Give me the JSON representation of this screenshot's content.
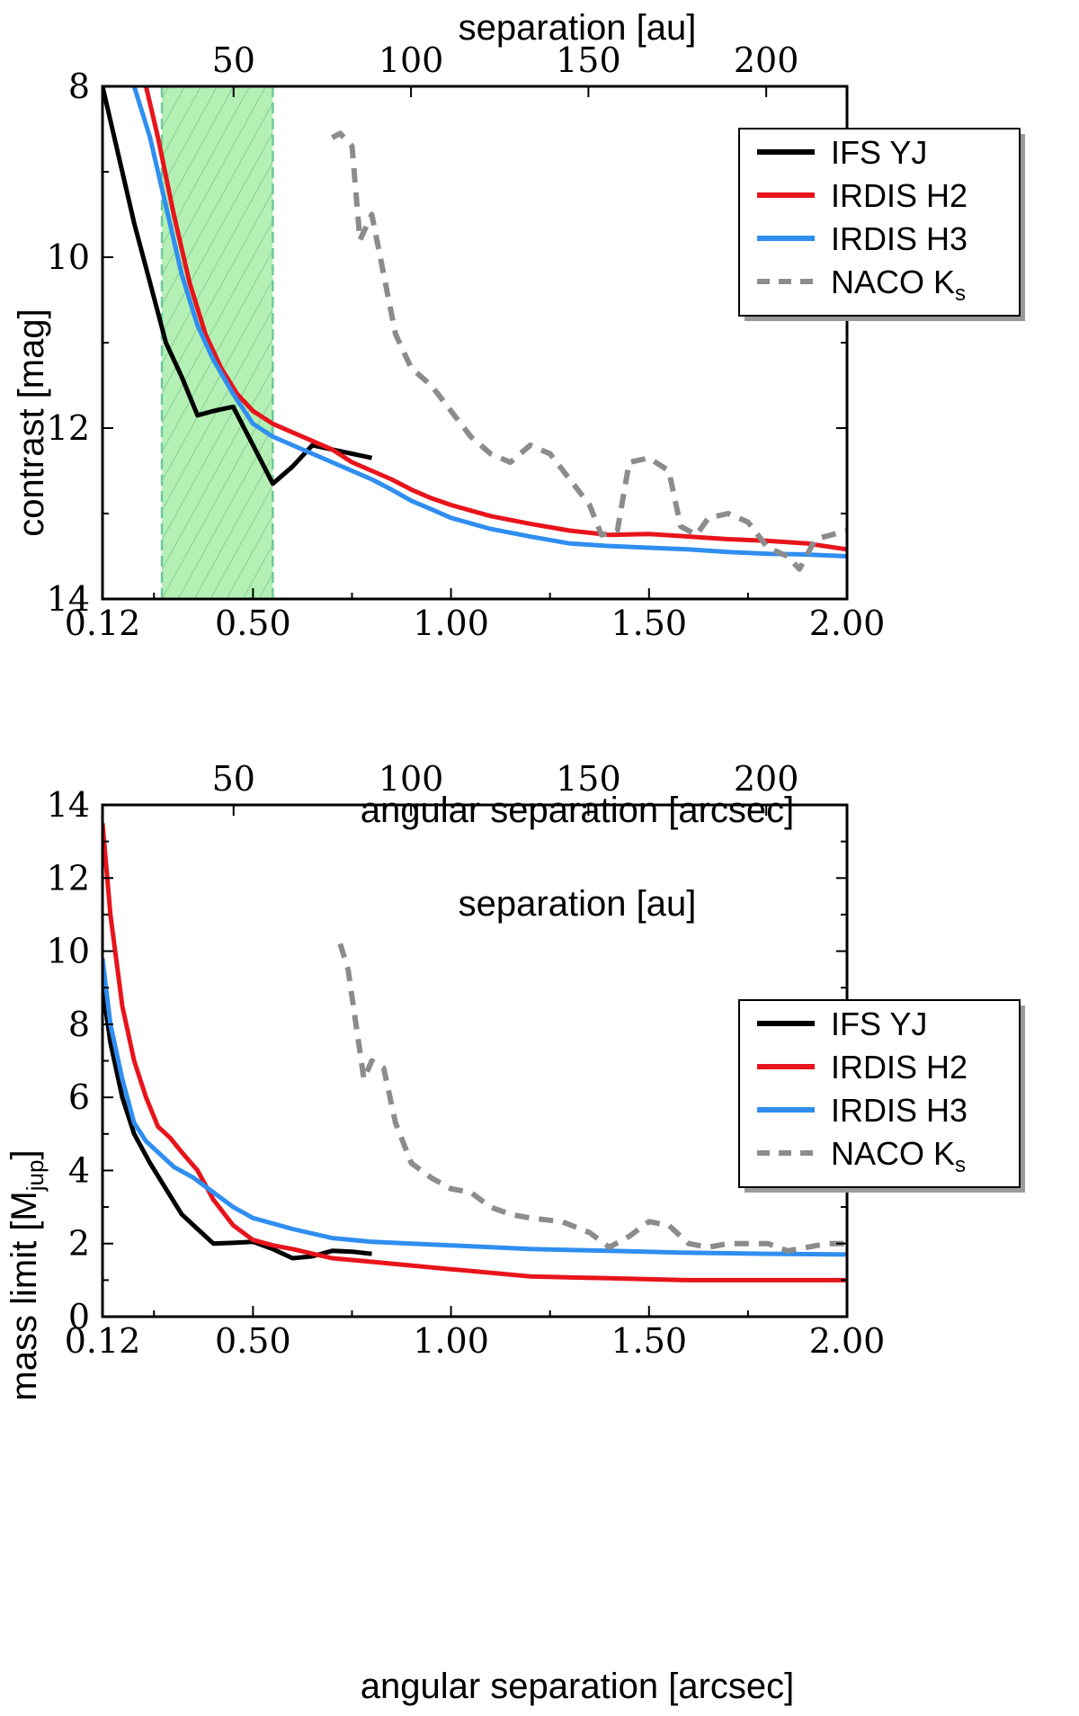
{
  "colors": {
    "IFS": "#000000",
    "H2": "#e8141b",
    "H3": "#2f8ef0",
    "NACO": "#8c8c8c",
    "band_fill": "#b4f0b4",
    "band_edge": "#6cc99a"
  },
  "chart_data": [
    {
      "type": "line",
      "name": "contrast",
      "xlabel": "angular separation [arcsec]",
      "ylabel": "contrast [mag]",
      "top_xlabel": "separation [au]",
      "xlim": [
        0.12,
        2.0
      ],
      "ylim": [
        14,
        8
      ],
      "x_ticks": [
        "0.12",
        "0.50",
        "1.00",
        "1.50",
        "2.00"
      ],
      "x_tick_values": [
        0.12,
        0.5,
        1.0,
        1.5,
        2.0
      ],
      "y_ticks": [
        "8",
        "10",
        "12",
        "14"
      ],
      "y_tick_values": [
        8,
        10,
        12,
        14
      ],
      "top_ticks": [
        "50",
        "100",
        "150",
        "200"
      ],
      "top_tick_values": [
        0.451,
        0.899,
        1.347,
        1.796
      ],
      "shaded_band": [
        0.27,
        0.55
      ],
      "legend": [
        "IFS YJ",
        "IRDIS H2",
        "IRDIS H3",
        "NACO K"
      ],
      "legend_sub": "s",
      "legend_position": "top-right",
      "series": [
        {
          "name": "IFS YJ",
          "style": "solid",
          "x": [
            0.12,
            0.16,
            0.2,
            0.24,
            0.28,
            0.32,
            0.36,
            0.4,
            0.45,
            0.5,
            0.55,
            0.6,
            0.65,
            0.7,
            0.75,
            0.8
          ],
          "y": [
            8.0,
            8.8,
            9.6,
            10.3,
            11.0,
            11.4,
            11.85,
            11.8,
            11.75,
            12.2,
            12.65,
            12.45,
            12.2,
            12.25,
            12.3,
            12.35
          ]
        },
        {
          "name": "IRDIS H2",
          "style": "solid",
          "x": [
            0.23,
            0.26,
            0.3,
            0.34,
            0.38,
            0.42,
            0.46,
            0.5,
            0.55,
            0.6,
            0.65,
            0.7,
            0.75,
            0.8,
            0.85,
            0.9,
            0.95,
            1.0,
            1.1,
            1.2,
            1.3,
            1.4,
            1.5,
            1.6,
            1.7,
            1.8,
            1.9,
            2.0
          ],
          "y": [
            8.0,
            8.6,
            9.5,
            10.3,
            10.9,
            11.3,
            11.6,
            11.8,
            11.95,
            12.05,
            12.15,
            12.25,
            12.4,
            12.5,
            12.6,
            12.72,
            12.82,
            12.9,
            13.03,
            13.12,
            13.2,
            13.25,
            13.24,
            13.27,
            13.3,
            13.32,
            13.35,
            13.42
          ]
        },
        {
          "name": "IRDIS H3",
          "style": "solid",
          "x": [
            0.2,
            0.24,
            0.28,
            0.32,
            0.36,
            0.4,
            0.45,
            0.5,
            0.55,
            0.6,
            0.65,
            0.7,
            0.75,
            0.8,
            0.85,
            0.9,
            0.95,
            1.0,
            1.1,
            1.2,
            1.3,
            1.4,
            1.5,
            1.6,
            1.7,
            1.8,
            1.9,
            2.0
          ],
          "y": [
            8.0,
            8.6,
            9.4,
            10.2,
            10.8,
            11.2,
            11.6,
            11.95,
            12.1,
            12.2,
            12.3,
            12.4,
            12.5,
            12.6,
            12.72,
            12.85,
            12.95,
            13.05,
            13.18,
            13.27,
            13.35,
            13.38,
            13.4,
            13.42,
            13.45,
            13.47,
            13.48,
            13.5
          ]
        },
        {
          "name": "NACO Ks",
          "style": "dashed",
          "x": [
            0.7,
            0.72,
            0.75,
            0.77,
            0.8,
            0.83,
            0.86,
            0.9,
            0.95,
            1.0,
            1.05,
            1.1,
            1.15,
            1.2,
            1.25,
            1.3,
            1.35,
            1.38,
            1.42,
            1.45,
            1.5,
            1.55,
            1.58,
            1.62,
            1.65,
            1.7,
            1.75,
            1.8,
            1.85,
            1.88,
            1.92,
            1.96,
            2.0
          ],
          "y": [
            8.6,
            8.55,
            8.7,
            9.8,
            9.5,
            10.2,
            10.9,
            11.3,
            11.5,
            11.8,
            12.1,
            12.3,
            12.4,
            12.2,
            12.3,
            12.6,
            12.9,
            13.25,
            13.2,
            12.4,
            12.35,
            12.5,
            13.15,
            13.25,
            13.05,
            13.0,
            13.1,
            13.4,
            13.5,
            13.65,
            13.3,
            13.25,
            13.2
          ]
        }
      ]
    },
    {
      "type": "line",
      "name": "mass-limit",
      "xlabel": "angular separation [arcsec]",
      "ylabel": "mass limit [M",
      "ylabel_sub": "jup",
      "ylabel_end": "]",
      "top_xlabel": "separation [au]",
      "xlim": [
        0.12,
        2.0
      ],
      "ylim": [
        0,
        14
      ],
      "x_ticks": [
        "0.12",
        "0.50",
        "1.00",
        "1.50",
        "2.00"
      ],
      "x_tick_values": [
        0.12,
        0.5,
        1.0,
        1.5,
        2.0
      ],
      "y_ticks": [
        "0",
        "2",
        "4",
        "6",
        "8",
        "10",
        "12",
        "14"
      ],
      "y_tick_values": [
        0,
        2,
        4,
        6,
        8,
        10,
        12,
        14
      ],
      "top_ticks": [
        "50",
        "100",
        "150",
        "200"
      ],
      "top_tick_values": [
        0.451,
        0.899,
        1.347,
        1.796
      ],
      "legend": [
        "IFS YJ",
        "IRDIS H2",
        "IRDIS H3",
        "NACO K"
      ],
      "legend_sub": "s",
      "legend_position": "top-right",
      "series": [
        {
          "name": "IFS YJ",
          "style": "solid",
          "x": [
            0.12,
            0.14,
            0.17,
            0.2,
            0.24,
            0.28,
            0.32,
            0.36,
            0.4,
            0.45,
            0.5,
            0.55,
            0.6,
            0.65,
            0.7,
            0.75,
            0.8
          ],
          "y": [
            9.0,
            7.5,
            6.0,
            5.0,
            4.2,
            3.5,
            2.8,
            2.4,
            2.0,
            2.02,
            2.05,
            1.85,
            1.6,
            1.65,
            1.8,
            1.78,
            1.72
          ]
        },
        {
          "name": "IRDIS H2",
          "style": "solid",
          "x": [
            0.12,
            0.14,
            0.17,
            0.2,
            0.23,
            0.26,
            0.29,
            0.32,
            0.36,
            0.4,
            0.45,
            0.5,
            0.55,
            0.6,
            0.7,
            0.8,
            0.9,
            1.0,
            1.2,
            1.4,
            1.6,
            1.8,
            2.0
          ],
          "y": [
            13.5,
            11.0,
            8.5,
            7.0,
            6.0,
            5.2,
            4.9,
            4.5,
            4.0,
            3.2,
            2.5,
            2.1,
            1.95,
            1.85,
            1.6,
            1.5,
            1.4,
            1.3,
            1.1,
            1.05,
            1.0,
            1.0,
            1.0
          ]
        },
        {
          "name": "IRDIS H3",
          "style": "solid",
          "x": [
            0.12,
            0.14,
            0.17,
            0.2,
            0.23,
            0.26,
            0.3,
            0.35,
            0.4,
            0.45,
            0.5,
            0.55,
            0.6,
            0.7,
            0.8,
            0.9,
            1.0,
            1.2,
            1.4,
            1.6,
            1.8,
            2.0
          ],
          "y": [
            9.8,
            8.0,
            6.5,
            5.3,
            4.8,
            4.5,
            4.1,
            3.8,
            3.4,
            3.0,
            2.7,
            2.55,
            2.4,
            2.15,
            2.05,
            2.0,
            1.95,
            1.85,
            1.8,
            1.75,
            1.72,
            1.7
          ]
        },
        {
          "name": "NACO Ks",
          "style": "dashed",
          "x": [
            0.72,
            0.74,
            0.76,
            0.78,
            0.8,
            0.83,
            0.86,
            0.9,
            0.95,
            1.0,
            1.05,
            1.1,
            1.15,
            1.2,
            1.28,
            1.35,
            1.4,
            1.45,
            1.5,
            1.55,
            1.6,
            1.65,
            1.7,
            1.75,
            1.8,
            1.85,
            1.9,
            1.95,
            2.0
          ],
          "y": [
            10.2,
            9.5,
            8.0,
            6.5,
            7.0,
            6.8,
            5.3,
            4.2,
            3.8,
            3.5,
            3.4,
            3.0,
            2.8,
            2.7,
            2.6,
            2.3,
            1.9,
            2.2,
            2.6,
            2.5,
            2.0,
            1.9,
            2.0,
            2.0,
            2.0,
            1.8,
            1.9,
            2.0,
            2.0
          ]
        }
      ]
    }
  ]
}
